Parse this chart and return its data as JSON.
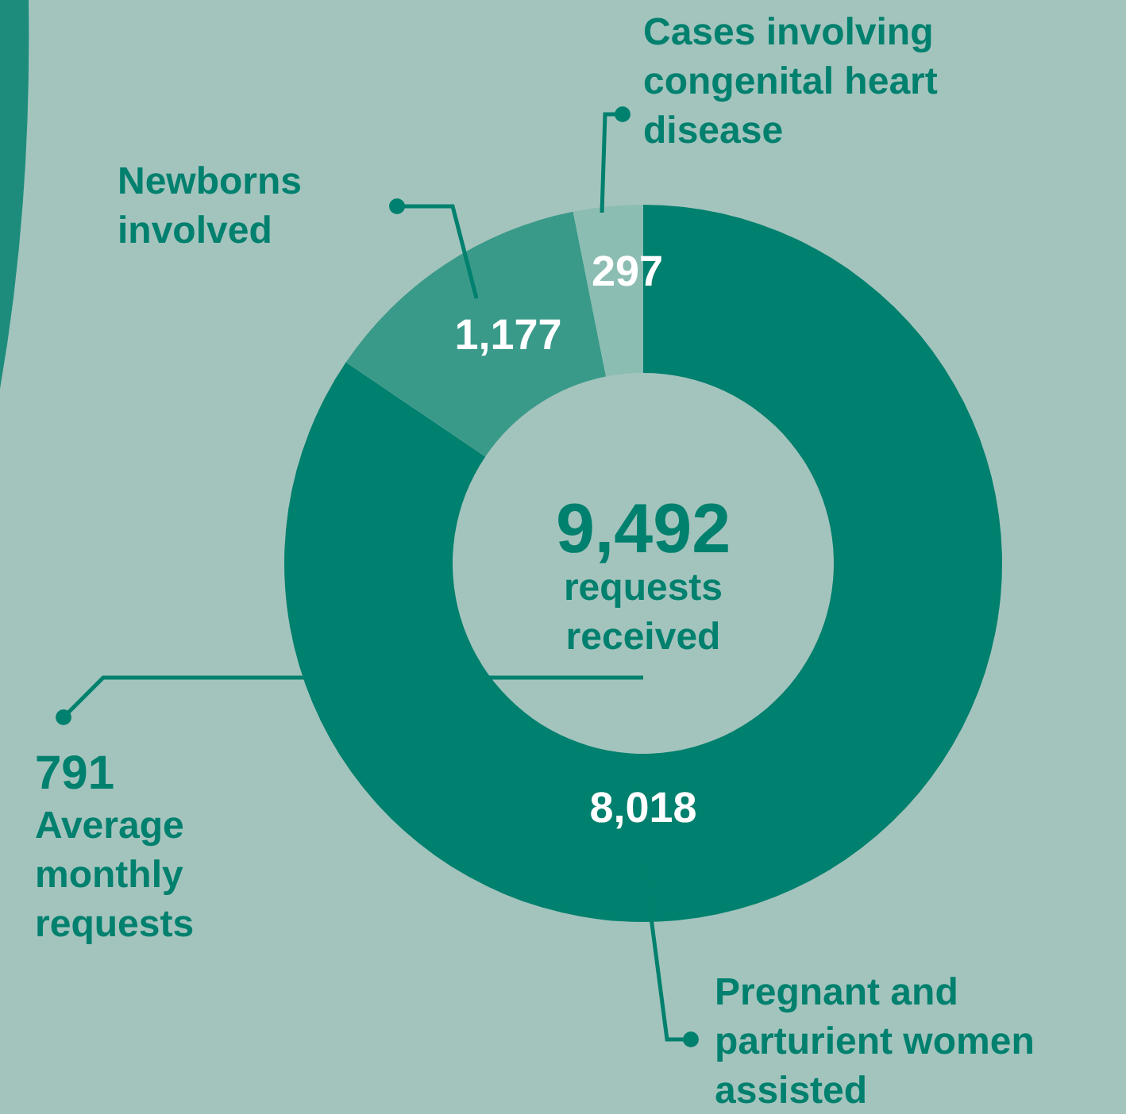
{
  "chart_data": {
    "type": "donut",
    "categories": [
      "Pregnant and parturient women assisted",
      "Newborns involved",
      "Cases involving congenital heart disease"
    ],
    "values": [
      8018,
      1177,
      297
    ],
    "colors": [
      "#00806e",
      "#3a9a89",
      "#8cbdb3"
    ],
    "value_labels": [
      "8,018",
      "1,177",
      "297"
    ],
    "annotations": [
      "9,492",
      "requests received",
      "791",
      "Average monthly requests"
    ]
  }
}
